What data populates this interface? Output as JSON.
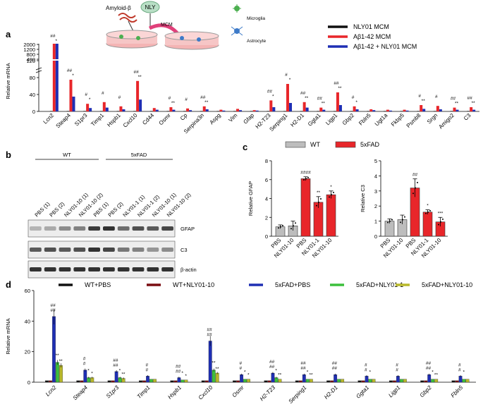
{
  "schematic": {
    "labels": [
      "Amyloid-β",
      "NLY",
      "MCM",
      "Microglia",
      "Astrocyte"
    ]
  },
  "colors": {
    "black": "#111111",
    "red": "#e8262a",
    "blue": "#1f2fb4",
    "gray": "#bdbdbd",
    "darkred": "#7a0d12",
    "green": "#3cbf3c",
    "olive": "#b8b82a"
  },
  "panels": {
    "a": "a",
    "b": "b",
    "c": "c",
    "d": "d"
  },
  "chart_data": [
    {
      "id": "a",
      "type": "bar",
      "ylabel": "Relative mRNA",
      "yticks_low": [
        "0",
        "40",
        "80",
        "120"
      ],
      "yticks_high": [
        "400",
        "800",
        "1200",
        "2000"
      ],
      "ylim_low": [
        0,
        120
      ],
      "legend": [
        {
          "name": "NLY01 MCM",
          "color": "#111111"
        },
        {
          "name": "Aβ1-42 MCM",
          "color": "#e8262a"
        },
        {
          "name": "Aβ1-42 + NLY01 MCM",
          "color": "#1f2fb4"
        }
      ],
      "categories": [
        "Lcn2",
        "Steap4",
        "S1pr3",
        "Timp1",
        "Hspb1",
        "Cxcl10",
        "Cd44",
        "Osmr",
        "Cp",
        "Serpina3n",
        "Aspg",
        "Vim",
        "Gfap",
        "H2-T23",
        "Serping1",
        "H2-D1",
        "Ggta1",
        "Ligp1",
        "Gbp2",
        "Fbln5",
        "Ugt1a",
        "Fkbp5",
        "Psmb8",
        "Srgn",
        "Amigo2",
        "C3"
      ],
      "series": [
        {
          "name": "NLY01 MCM",
          "values": [
            1,
            1,
            1,
            1,
            1,
            1,
            1,
            1,
            1,
            1,
            1,
            1,
            1,
            1,
            1,
            1,
            1,
            1,
            1,
            1,
            1,
            1,
            1,
            1,
            1,
            1
          ]
        },
        {
          "name": "Aβ1-42 MCM",
          "values": [
            1300,
            75,
            18,
            22,
            12,
            72,
            8,
            10,
            7,
            12,
            4,
            6,
            3,
            26,
            65,
            22,
            9,
            45,
            12,
            5,
            4,
            4,
            15,
            13,
            9,
            10
          ]
        },
        {
          "name": "Aβ1-42 + NLY01 MCM",
          "values": [
            300,
            35,
            8,
            9,
            5,
            28,
            4,
            4,
            3,
            5,
            2,
            3,
            2,
            10,
            20,
            9,
            4,
            15,
            5,
            3,
            2,
            2,
            6,
            5,
            4,
            4
          ]
        }
      ],
      "sig": [
        [
          "##",
          "*"
        ],
        [
          "##",
          "*"
        ],
        [
          "#",
          "*"
        ],
        [
          "#",
          ""
        ],
        [
          "#",
          ""
        ],
        [
          "##",
          "**"
        ],
        [
          "",
          ""
        ],
        [
          "#",
          "**"
        ],
        [
          "#",
          ""
        ],
        [
          "##",
          "**"
        ],
        [
          "",
          ""
        ],
        [
          "",
          ""
        ],
        [
          "",
          ""
        ],
        [
          "##",
          "*"
        ],
        [
          "#",
          "*"
        ],
        [
          "##",
          "**"
        ],
        [
          "##",
          "**"
        ],
        [
          "##",
          "**"
        ],
        [
          "#",
          "*"
        ],
        [
          "",
          ""
        ],
        [
          "",
          ""
        ],
        [
          "",
          ""
        ],
        [
          "#",
          "**"
        ],
        [
          "#",
          ""
        ],
        [
          "##",
          "**"
        ],
        [
          "##",
          "**"
        ]
      ]
    },
    {
      "id": "c1",
      "type": "bar",
      "ylabel": "Relative GFAP",
      "ylim": [
        0,
        8
      ],
      "yticks": [
        "0",
        "2",
        "4",
        "6",
        "8"
      ],
      "legend": [
        {
          "name": "WT",
          "color": "#bdbdbd"
        },
        {
          "name": "5xFAD",
          "color": "#e8262a"
        }
      ],
      "categories": [
        "PBS",
        "NLY01-10",
        "PBS",
        "NLY01-1",
        "NLY01-10"
      ],
      "values": [
        1.0,
        1.1,
        6.1,
        3.6,
        4.4
      ],
      "errors": [
        0.2,
        0.5,
        0.2,
        0.6,
        0.4
      ],
      "sig": [
        "",
        "",
        "####",
        "**",
        "*"
      ]
    },
    {
      "id": "c2",
      "type": "bar",
      "ylabel": "Relative C3",
      "ylim": [
        0,
        5
      ],
      "yticks": [
        "0",
        "1",
        "2",
        "3",
        "4",
        "5"
      ],
      "categories": [
        "PBS",
        "NLY01-10",
        "PBS",
        "NLY01-1",
        "NLY01-10"
      ],
      "values": [
        1.0,
        1.1,
        3.2,
        1.6,
        0.95
      ],
      "errors": [
        0.15,
        0.3,
        0.6,
        0.15,
        0.3
      ],
      "sig": [
        "",
        "",
        "##",
        "*",
        "***"
      ]
    },
    {
      "id": "d",
      "type": "bar",
      "ylabel": "Relative mRNA",
      "ylim": [
        0,
        60
      ],
      "yticks": [
        "0",
        "20",
        "40",
        "60"
      ],
      "legend": [
        {
          "name": "WT+PBS",
          "color": "#111111"
        },
        {
          "name": "WT+NLY01-10",
          "color": "#7a0d12"
        },
        {
          "name": "5xFAD+PBS",
          "color": "#1f2fb4"
        },
        {
          "name": "5xFAD+NLY01-1",
          "color": "#3cbf3c"
        },
        {
          "name": "5xFAD+NLY01-10",
          "color": "#b8b82a"
        }
      ],
      "categories": [
        "Lcn2",
        "Steap4",
        "S1pr3",
        "Timp1",
        "Hspb1",
        "Cxcl10",
        "Osmr",
        "H2-T23",
        "Serping1",
        "H2-D1",
        "Ggta1",
        "Ligp1",
        "Gbp2",
        "Fbln5"
      ],
      "series": [
        {
          "name": "WT+PBS",
          "values": [
            1,
            1,
            1,
            1,
            1,
            1,
            1,
            1,
            1,
            1,
            1,
            1,
            1,
            1
          ]
        },
        {
          "name": "WT+NLY01-10",
          "values": [
            1,
            1,
            1,
            1,
            1,
            1,
            1,
            1,
            1,
            1,
            1,
            1,
            1,
            1
          ]
        },
        {
          "name": "5xFAD+PBS",
          "values": [
            43,
            8,
            7,
            4,
            3,
            27,
            5,
            6,
            5,
            5,
            4,
            4,
            5,
            4
          ]
        },
        {
          "name": "5xFAD+NLY01-1",
          "values": [
            13,
            3,
            3,
            2,
            1.5,
            8,
            2,
            3,
            2,
            2,
            2,
            2,
            2,
            2
          ]
        },
        {
          "name": "5xFAD+NLY01-10",
          "values": [
            11,
            3,
            2.5,
            2,
            1.5,
            6,
            2,
            2,
            2,
            2,
            2,
            2,
            2,
            2
          ]
        }
      ],
      "sig": [
        [
          "##",
          "**",
          "**"
        ],
        [
          "#",
          "*",
          "*"
        ],
        [
          "##",
          "*",
          "**"
        ],
        [
          "#",
          "",
          ""
        ],
        [
          "##",
          "*",
          "*"
        ],
        [
          "##",
          "**",
          "**"
        ],
        [
          "#",
          "*",
          "*"
        ],
        [
          "##",
          "*",
          "**"
        ],
        [
          "##",
          "*",
          "**"
        ],
        [
          "##",
          "",
          ""
        ],
        [
          "#",
          "*",
          ""
        ],
        [
          "#",
          "",
          ""
        ],
        [
          "##",
          "*",
          "**"
        ],
        [
          "#",
          "*",
          ""
        ]
      ]
    }
  ],
  "blot": {
    "title": "b",
    "groups": [
      "WT",
      "5xFAD"
    ],
    "lanes": [
      "PBS (1)",
      "PBS (2)",
      "NLY01-10 (1)",
      "NLY01-10 (2)",
      "PBS (1)",
      "PBS (2)",
      "NLY01-1 (1)",
      "NLY01-1 (2)",
      "NLY01-10 (1)",
      "NLY01-10 (2)"
    ],
    "bands": [
      {
        "label": "GFAP",
        "intensities": [
          0.25,
          0.3,
          0.45,
          0.5,
          0.85,
          0.9,
          0.6,
          0.75,
          0.7,
          0.8
        ]
      },
      {
        "label": "C3",
        "intensities": [
          0.7,
          0.75,
          0.7,
          0.75,
          0.9,
          0.8,
          0.55,
          0.5,
          0.4,
          0.45
        ]
      },
      {
        "label": "β-actin",
        "intensities": [
          0.9,
          0.9,
          0.9,
          0.9,
          0.9,
          0.9,
          0.9,
          0.9,
          0.9,
          0.9
        ]
      }
    ]
  }
}
